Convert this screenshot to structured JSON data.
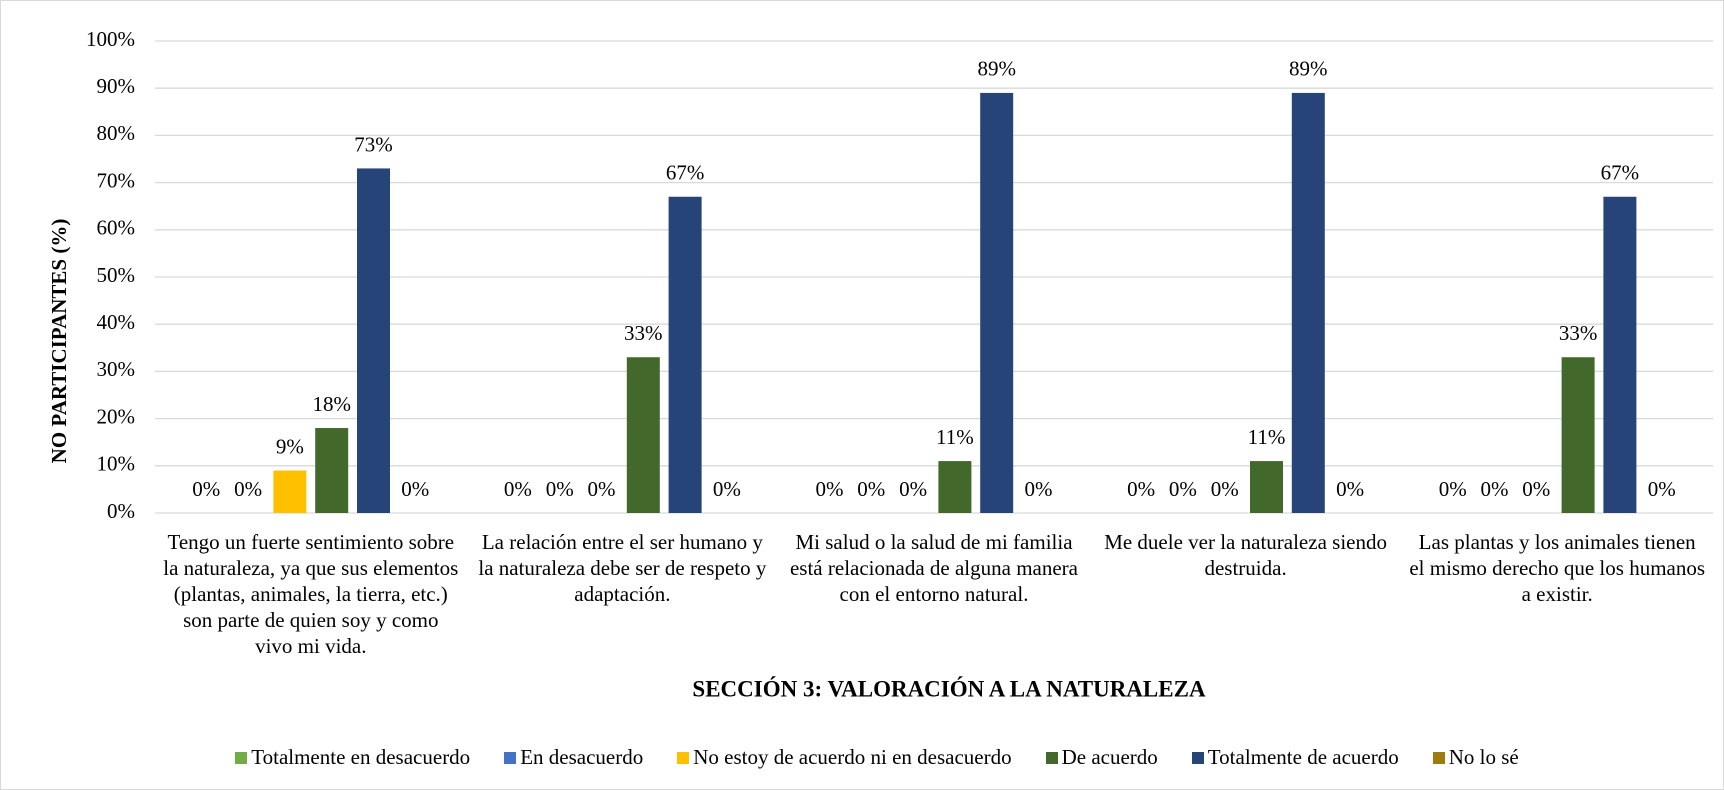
{
  "chart_data": {
    "type": "bar",
    "title": "SECCIÓN 3: VALORACIÓN A LA NATURALEZA",
    "y_label": "NO PARTICIPANTES (%)",
    "categories": [
      "Tengo un fuerte sentimiento sobre la naturaleza, ya que sus elementos (plantas, animales, la tierra, etc.) son parte de quien soy y como vivo mi vida.",
      "La relación entre el ser humano y la naturaleza debe ser de respeto y adaptación.",
      "Mi salud o la salud de mi familia está relacionada de alguna manera con el entorno natural.",
      "Me duele ver la naturaleza siendo destruida.",
      "Las plantas y los animales tienen el mismo derecho que los humanos a existir."
    ],
    "series": [
      {
        "name": "Totalmente en desacuerdo",
        "color": "#70ad47",
        "values": [
          0,
          0,
          0,
          0,
          0
        ],
        "value_labels": [
          "0%",
          "0%",
          "0%",
          "0%",
          "0%"
        ]
      },
      {
        "name": "En desacuerdo",
        "color": "#4472c4",
        "values": [
          0,
          0,
          0,
          0,
          0
        ],
        "value_labels": [
          "0%",
          "0%",
          "0%",
          "0%",
          "0%"
        ]
      },
      {
        "name": "No estoy de acuerdo ni en desacuerdo",
        "color": "#ffc000",
        "values": [
          9,
          0,
          0,
          0,
          0
        ],
        "value_labels": [
          "9%",
          "0%",
          "0%",
          "0%",
          "0%"
        ]
      },
      {
        "name": "De acuerdo",
        "color": "#43682b",
        "values": [
          18,
          33,
          11,
          11,
          33
        ],
        "value_labels": [
          "18%",
          "33%",
          "11%",
          "11%",
          "33%"
        ]
      },
      {
        "name": "Totalmente de acuerdo",
        "color": "#264478",
        "values": [
          73,
          67,
          89,
          89,
          67
        ],
        "value_labels": [
          "73%",
          "67%",
          "89%",
          "89%",
          "67%"
        ]
      },
      {
        "name": "No lo sé",
        "color": "#9e7c0c",
        "values": [
          0,
          0,
          0,
          0,
          0
        ],
        "value_labels": [
          "0%",
          "0%",
          "0%",
          "0%",
          "0%"
        ]
      }
    ],
    "ylim": [
      0,
      100
    ],
    "yticks": [
      {
        "value": 0,
        "label": "0%"
      },
      {
        "value": 10,
        "label": "10%"
      },
      {
        "value": 20,
        "label": "20%"
      },
      {
        "value": 30,
        "label": "30%"
      },
      {
        "value": 40,
        "label": "40%"
      },
      {
        "value": 50,
        "label": "50%"
      },
      {
        "value": 60,
        "label": "60%"
      },
      {
        "value": 70,
        "label": "70%"
      },
      {
        "value": 80,
        "label": "80%"
      },
      {
        "value": 90,
        "label": "90%"
      },
      {
        "value": 100,
        "label": "100%"
      }
    ],
    "grid": true,
    "legend": "bottom"
  }
}
